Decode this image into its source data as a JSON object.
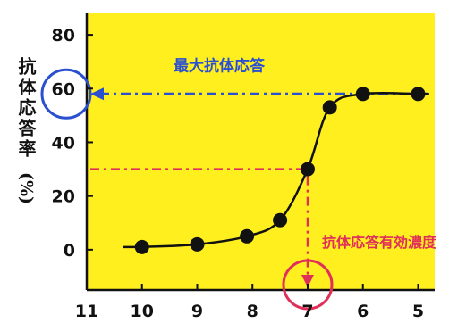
{
  "chart_data": {
    "type": "line",
    "title": "",
    "ylabel": "抗体応答率",
    "ylabel_unit": "(%)",
    "xlabel": "",
    "x_ticks": [
      11,
      10,
      9,
      8,
      7,
      6,
      5
    ],
    "xlim": [
      11,
      4.7
    ],
    "y_ticks": [
      0,
      20,
      40,
      60,
      80
    ],
    "ylim": [
      -15,
      88
    ],
    "grid": false,
    "background_color": "#ffef1f",
    "series": [
      {
        "color": "#111111",
        "points": [
          {
            "x": 10.0,
            "y": 1
          },
          {
            "x": 9.0,
            "y": 2
          },
          {
            "x": 8.1,
            "y": 5
          },
          {
            "x": 7.5,
            "y": 11
          },
          {
            "x": 7.0,
            "y": 30
          },
          {
            "x": 6.6,
            "y": 53
          },
          {
            "x": 6.0,
            "y": 58
          },
          {
            "x": 5.0,
            "y": 58
          }
        ]
      }
    ],
    "annotations": {
      "max_response": {
        "text": "最大抗体応答",
        "y": 58,
        "color": "#2a4fd0"
      },
      "effective_concentration": {
        "text": "抗体応答有効濃度",
        "x": 7.0,
        "y": 30,
        "color": "#e0305a"
      }
    }
  }
}
